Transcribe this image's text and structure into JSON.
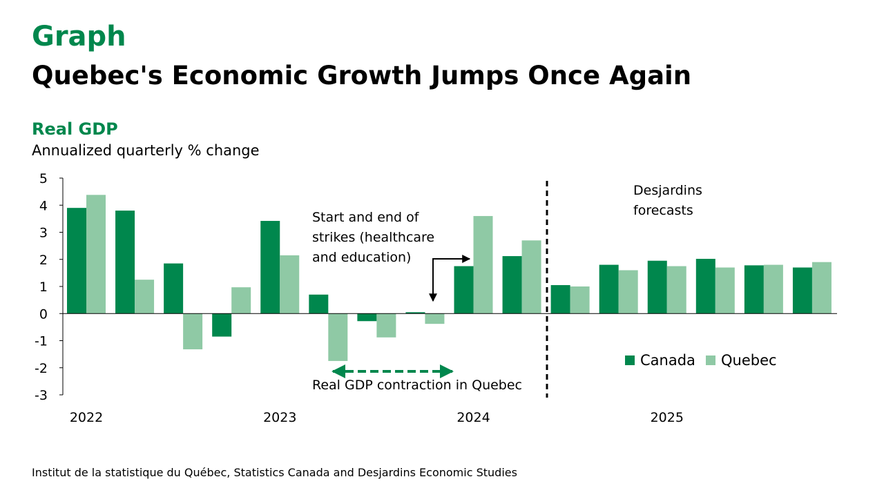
{
  "header": {
    "label": "Graph",
    "title": "Quebec's Economic Growth Jumps Once Again",
    "subtitle": "Real GDP",
    "subsubtitle": "Annualized quarterly % change"
  },
  "source": "Institut de la statistique du Québec, Statistics Canada and Desjardins Economic Studies",
  "colors": {
    "canada": "#00874d",
    "quebec": "#8fc9a5",
    "accent": "#00874d"
  },
  "chart_data": {
    "type": "bar",
    "categories": [
      "2022 Q1",
      "2022 Q2",
      "2022 Q3",
      "2022 Q4",
      "2023 Q1",
      "2023 Q2",
      "2023 Q3",
      "2023 Q4",
      "2024 Q1",
      "2024 Q2",
      "2024 Q3",
      "2024 Q4",
      "2025 Q1",
      "2025 Q2",
      "2025 Q3",
      "2025 Q4"
    ],
    "x_tick_labels": [
      {
        "label": "2022",
        "index": 0
      },
      {
        "label": "2023",
        "index": 4
      },
      {
        "label": "2024",
        "index": 8
      },
      {
        "label": "2025",
        "index": 12
      }
    ],
    "series": [
      {
        "name": "Canada",
        "values": [
          3.9,
          3.8,
          1.85,
          -0.85,
          3.42,
          0.7,
          -0.28,
          0.05,
          1.75,
          2.12,
          1.05,
          1.8,
          1.95,
          2.02,
          1.78,
          1.7
        ]
      },
      {
        "name": "Quebec",
        "values": [
          4.38,
          1.25,
          -1.32,
          0.97,
          2.15,
          -1.75,
          -0.88,
          -0.38,
          3.6,
          2.7,
          1.0,
          1.6,
          1.75,
          1.7,
          1.8,
          1.9
        ]
      }
    ],
    "ylim": [
      -3,
      5
    ],
    "yticks": [
      5,
      4,
      3,
      2,
      1,
      0,
      -1,
      -2,
      -3
    ],
    "forecast_start_index": 10,
    "annotations": {
      "forecast": [
        "Desjardins",
        "forecasts"
      ],
      "strikes": [
        "Start and end of",
        "strikes (healthcare",
        "and education)"
      ],
      "contraction": "Real GDP contraction in Quebec"
    },
    "legend_position": "lower-right"
  }
}
